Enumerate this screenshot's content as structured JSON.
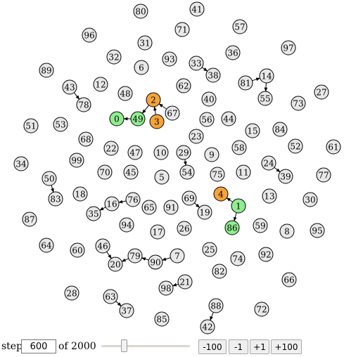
{
  "colors": {
    "default": "#e8e8e8",
    "green": "#90ee90",
    "orange": "#f5a33a"
  },
  "nodes": [
    {
      "id": "80",
      "color": "default"
    },
    {
      "id": "41",
      "color": "default"
    },
    {
      "id": "96",
      "color": "default"
    },
    {
      "id": "71",
      "color": "default"
    },
    {
      "id": "57",
      "color": "default"
    },
    {
      "id": "31",
      "color": "default"
    },
    {
      "id": "97",
      "color": "default"
    },
    {
      "id": "32",
      "color": "default"
    },
    {
      "id": "93",
      "color": "default"
    },
    {
      "id": "36",
      "color": "default"
    },
    {
      "id": "89",
      "color": "default"
    },
    {
      "id": "6",
      "color": "default"
    },
    {
      "id": "33",
      "color": "default"
    },
    {
      "id": "38",
      "color": "default"
    },
    {
      "id": "14",
      "color": "default"
    },
    {
      "id": "43",
      "color": "default"
    },
    {
      "id": "12",
      "color": "default"
    },
    {
      "id": "62",
      "color": "default"
    },
    {
      "id": "81",
      "color": "default"
    },
    {
      "id": "78",
      "color": "default"
    },
    {
      "id": "48",
      "color": "default"
    },
    {
      "id": "2",
      "color": "orange"
    },
    {
      "id": "40",
      "color": "default"
    },
    {
      "id": "55",
      "color": "default"
    },
    {
      "id": "27",
      "color": "default"
    },
    {
      "id": "73",
      "color": "default"
    },
    {
      "id": "67",
      "color": "default"
    },
    {
      "id": "0",
      "color": "green"
    },
    {
      "id": "49",
      "color": "green"
    },
    {
      "id": "3",
      "color": "orange"
    },
    {
      "id": "56",
      "color": "default"
    },
    {
      "id": "44",
      "color": "default"
    },
    {
      "id": "51",
      "color": "default"
    },
    {
      "id": "53",
      "color": "default"
    },
    {
      "id": "15",
      "color": "default"
    },
    {
      "id": "84",
      "color": "default"
    },
    {
      "id": "23",
      "color": "default"
    },
    {
      "id": "68",
      "color": "default"
    },
    {
      "id": "52",
      "color": "default"
    },
    {
      "id": "61",
      "color": "default"
    },
    {
      "id": "22",
      "color": "default"
    },
    {
      "id": "47",
      "color": "default"
    },
    {
      "id": "10",
      "color": "default"
    },
    {
      "id": "29",
      "color": "default"
    },
    {
      "id": "9",
      "color": "default"
    },
    {
      "id": "58",
      "color": "default"
    },
    {
      "id": "99",
      "color": "default"
    },
    {
      "id": "34",
      "color": "default"
    },
    {
      "id": "24",
      "color": "default"
    },
    {
      "id": "70",
      "color": "default"
    },
    {
      "id": "45",
      "color": "default"
    },
    {
      "id": "54",
      "color": "default"
    },
    {
      "id": "75",
      "color": "default"
    },
    {
      "id": "11",
      "color": "default"
    },
    {
      "id": "39",
      "color": "default"
    },
    {
      "id": "77",
      "color": "default"
    },
    {
      "id": "50",
      "color": "default"
    },
    {
      "id": "5",
      "color": "default"
    },
    {
      "id": "18",
      "color": "default"
    },
    {
      "id": "83",
      "color": "default"
    },
    {
      "id": "4",
      "color": "orange"
    },
    {
      "id": "13",
      "color": "default"
    },
    {
      "id": "30",
      "color": "default"
    },
    {
      "id": "76",
      "color": "default"
    },
    {
      "id": "69",
      "color": "default"
    },
    {
      "id": "1",
      "color": "green"
    },
    {
      "id": "16",
      "color": "default"
    },
    {
      "id": "65",
      "color": "default"
    },
    {
      "id": "91",
      "color": "default"
    },
    {
      "id": "35",
      "color": "default"
    },
    {
      "id": "19",
      "color": "default"
    },
    {
      "id": "87",
      "color": "default"
    },
    {
      "id": "94",
      "color": "default"
    },
    {
      "id": "59",
      "color": "default"
    },
    {
      "id": "8",
      "color": "default"
    },
    {
      "id": "95",
      "color": "default"
    },
    {
      "id": "86",
      "color": "green"
    },
    {
      "id": "17",
      "color": "default"
    },
    {
      "id": "26",
      "color": "default"
    },
    {
      "id": "64",
      "color": "default"
    },
    {
      "id": "46",
      "color": "default"
    },
    {
      "id": "60",
      "color": "default"
    },
    {
      "id": "25",
      "color": "default"
    },
    {
      "id": "92",
      "color": "default"
    },
    {
      "id": "79",
      "color": "default"
    },
    {
      "id": "7",
      "color": "default"
    },
    {
      "id": "74",
      "color": "default"
    },
    {
      "id": "20",
      "color": "default"
    },
    {
      "id": "90",
      "color": "default"
    },
    {
      "id": "82",
      "color": "default"
    },
    {
      "id": "66",
      "color": "default"
    },
    {
      "id": "21",
      "color": "default"
    },
    {
      "id": "98",
      "color": "default"
    },
    {
      "id": "28",
      "color": "default"
    },
    {
      "id": "63",
      "color": "default"
    },
    {
      "id": "88",
      "color": "default"
    },
    {
      "id": "72",
      "color": "default"
    },
    {
      "id": "37",
      "color": "default"
    },
    {
      "id": "85",
      "color": "default"
    },
    {
      "id": "42",
      "color": "default"
    }
  ],
  "edges": [
    {
      "from": "33",
      "to": "38"
    },
    {
      "from": "81",
      "to": "14"
    },
    {
      "from": "14",
      "to": "55"
    },
    {
      "from": "43",
      "to": "78"
    },
    {
      "from": "49",
      "to": "0"
    },
    {
      "from": "3",
      "to": "2"
    },
    {
      "from": "2",
      "to": "49"
    },
    {
      "from": "67",
      "to": "2"
    },
    {
      "from": "29",
      "to": "54"
    },
    {
      "from": "24",
      "to": "39"
    },
    {
      "from": "50",
      "to": "83"
    },
    {
      "from": "1",
      "to": "4"
    },
    {
      "from": "1",
      "to": "86"
    },
    {
      "from": "69",
      "to": "19"
    },
    {
      "from": "76",
      "to": "16"
    },
    {
      "from": "16",
      "to": "35"
    },
    {
      "from": "46",
      "to": "20"
    },
    {
      "from": "79",
      "to": "20"
    },
    {
      "from": "90",
      "to": "79"
    },
    {
      "from": "7",
      "to": "90"
    },
    {
      "from": "21",
      "to": "98"
    },
    {
      "from": "63",
      "to": "37"
    },
    {
      "from": "88",
      "to": "42"
    }
  ],
  "controls": {
    "step_label": "step",
    "step_value": "600",
    "of_label": "of 2000",
    "slider_value": 600,
    "slider_max": 2000,
    "buttons": [
      "-100",
      "-1",
      "+1",
      "+100"
    ]
  }
}
